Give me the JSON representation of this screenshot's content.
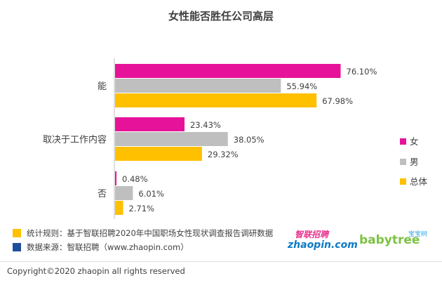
{
  "chart_data": {
    "type": "bar",
    "orientation": "horizontal",
    "title": "女性能否胜任公司高层",
    "categories": [
      "能",
      "取决于工作内容",
      "否"
    ],
    "series": [
      {
        "name": "女",
        "color": "#e6139a",
        "values": [
          76.1,
          23.43,
          0.48
        ],
        "labels": [
          "76.10%",
          "23.43%",
          "0.48%"
        ]
      },
      {
        "name": "男",
        "color": "#bfbfbf",
        "values": [
          55.94,
          38.05,
          6.01
        ],
        "labels": [
          "55.94%",
          "38.05%",
          "6.01%"
        ]
      },
      {
        "name": "总体",
        "color": "#ffc000",
        "values": [
          67.98,
          29.32,
          2.71
        ],
        "labels": [
          "67.98%",
          "29.32%",
          "2.71%"
        ]
      }
    ],
    "legend_position": "right",
    "grid": false
  },
  "footer": {
    "rule_text": "统计规则：基于智联招聘2020年中国职场女性现状调查报告调研数据",
    "rule_color": "#ffc000",
    "source_text": "数据来源：智联招聘（www.zhaopin.com）",
    "source_color": "#1f4e9c",
    "copyright": "Copyright©2020 zhaopin all rights reserved"
  },
  "logos": {
    "zhaopin_cn": "智联招聘",
    "zhaopin_en": "zhaopin.com",
    "babytree_en": "babytree",
    "babytree_cn": "宝宝树"
  }
}
